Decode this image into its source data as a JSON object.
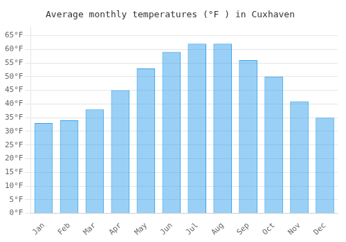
{
  "chart_data": {
    "type": "bar",
    "title": "Average monthly temperatures (°F ) in Cuxhaven",
    "categories": [
      "Jan",
      "Feb",
      "Mar",
      "Apr",
      "May",
      "Jun",
      "Jul",
      "Aug",
      "Sep",
      "Oct",
      "Nov",
      "Dec"
    ],
    "values": [
      33,
      34,
      38,
      45,
      53,
      59,
      62,
      62,
      56,
      50,
      41,
      35
    ],
    "ylim": [
      0,
      68
    ],
    "yticks": [
      {
        "value": 0,
        "label": "0°F"
      },
      {
        "value": 5,
        "label": "5°F"
      },
      {
        "value": 10,
        "label": "10°F"
      },
      {
        "value": 15,
        "label": "15°F"
      },
      {
        "value": 20,
        "label": "20°F"
      },
      {
        "value": 25,
        "label": "25°F"
      },
      {
        "value": 30,
        "label": "30°F"
      },
      {
        "value": 35,
        "label": "35°F"
      },
      {
        "value": 40,
        "label": "40°F"
      },
      {
        "value": 45,
        "label": "45°F"
      },
      {
        "value": 50,
        "label": "50°F"
      },
      {
        "value": 55,
        "label": "55°F"
      },
      {
        "value": 60,
        "label": "60°F"
      },
      {
        "value": 65,
        "label": "65°F"
      }
    ],
    "grid": true
  }
}
